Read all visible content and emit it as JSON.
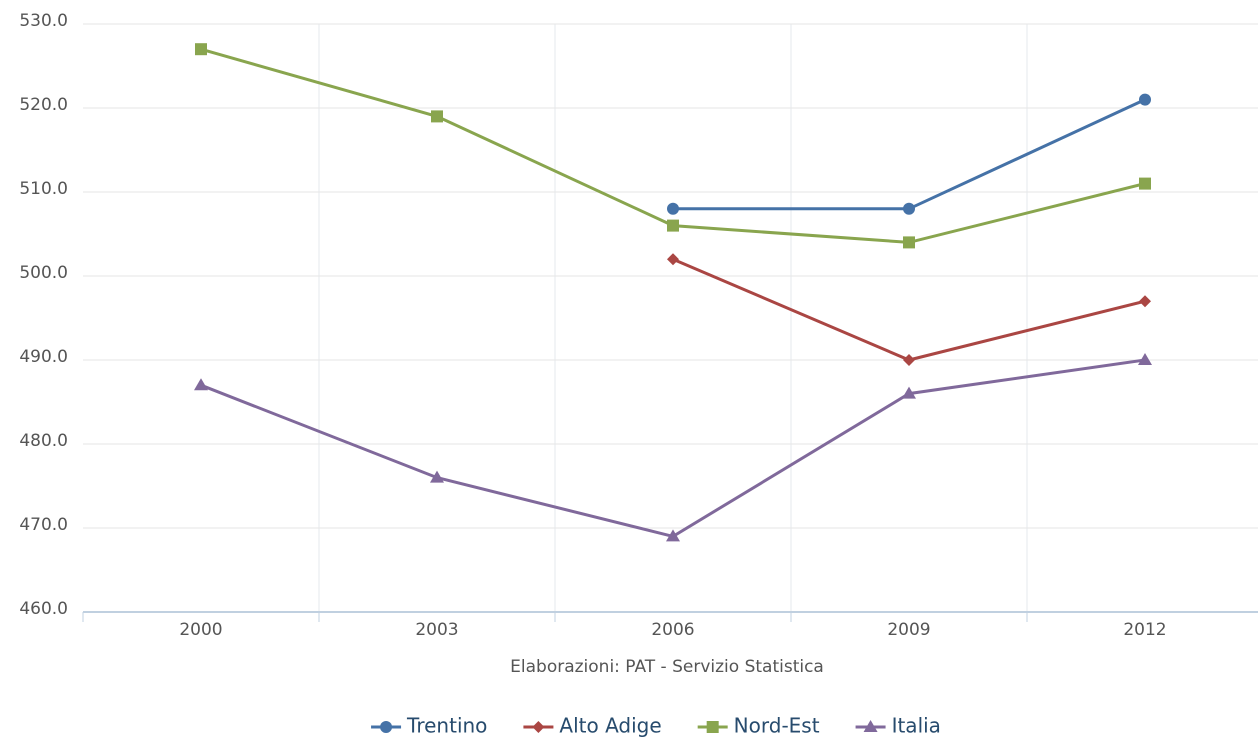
{
  "chart_data": {
    "type": "line",
    "caption": "Elaborazioni: PAT - Servizio Statistica",
    "categories": [
      "2000",
      "2003",
      "2006",
      "2009",
      "2012"
    ],
    "series": [
      {
        "name": "Trentino",
        "color": "#4572a7",
        "marker": "circle",
        "values": [
          null,
          null,
          508,
          508,
          521
        ]
      },
      {
        "name": "Alto Adige",
        "color": "#aa4643",
        "marker": "diamond",
        "values": [
          null,
          null,
          502,
          490,
          497
        ]
      },
      {
        "name": "Nord-Est",
        "color": "#89a54e",
        "marker": "square",
        "values": [
          527,
          519,
          506,
          504,
          511
        ]
      },
      {
        "name": "Italia",
        "color": "#80699b",
        "marker": "triangle",
        "values": [
          487,
          476,
          469,
          486,
          490
        ]
      }
    ],
    "ylim": [
      460,
      530
    ],
    "yticks": [
      {
        "value": 460,
        "label": "460.0"
      },
      {
        "value": 470,
        "label": "470.0"
      },
      {
        "value": 480,
        "label": "480.0"
      },
      {
        "value": 490,
        "label": "490.0"
      },
      {
        "value": 500,
        "label": "500.0"
      },
      {
        "value": 510,
        "label": "510.0"
      },
      {
        "value": 520,
        "label": "520.0"
      },
      {
        "value": 530,
        "label": "530.0"
      }
    ],
    "grid": true,
    "legend": "bottom"
  }
}
